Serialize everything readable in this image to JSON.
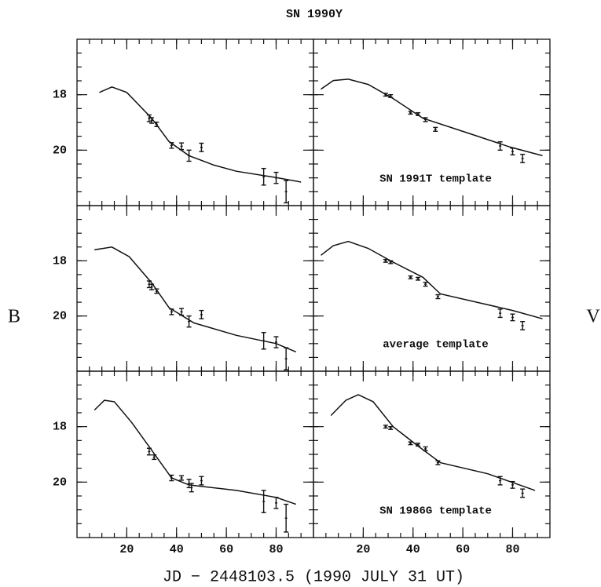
{
  "title": "SN 1990Y",
  "xlabel": "JD − 2448103.5 (1990 JULY 31 UT)",
  "ylabel_left": "B",
  "ylabel_right": "V",
  "chart_data": [
    {
      "type": "line",
      "xlim": [
        0,
        95
      ],
      "ylim": [
        22,
        16
      ],
      "xticks": [
        20,
        40,
        60,
        80
      ],
      "yticks": [
        18,
        20
      ],
      "xminor": 5,
      "yminor": 0.5,
      "xtick_labels": false,
      "ytick_labels": true,
      "curve": {
        "x": [
          9,
          14,
          20,
          30,
          37,
          45,
          55,
          64,
          80,
          90
        ],
        "y": [
          17.92,
          17.72,
          17.92,
          18.85,
          19.69,
          20.2,
          20.54,
          20.76,
          20.99,
          21.15
        ]
      },
      "points": {
        "x": [
          29,
          30,
          32,
          38,
          42,
          45,
          50,
          75,
          80,
          84
        ],
        "y": [
          18.85,
          18.93,
          19.07,
          19.83,
          19.86,
          20.2,
          19.9,
          20.96,
          21.0,
          21.5
        ],
        "err": [
          0.12,
          0.1,
          0.08,
          0.1,
          0.12,
          0.2,
          0.15,
          0.3,
          0.2,
          0.4
        ]
      }
    },
    {
      "type": "line",
      "xlim": [
        0,
        95
      ],
      "ylim": [
        22,
        16
      ],
      "xticks": [
        20,
        40,
        60,
        80
      ],
      "yticks": [
        18,
        20
      ],
      "xminor": 5,
      "yminor": 0.5,
      "xtick_labels": false,
      "ytick_labels": false,
      "annotation": "SN 1991T template",
      "curve": {
        "x": [
          3,
          8,
          14,
          22,
          32,
          44,
          63,
          79,
          92
        ],
        "y": [
          17.8,
          17.49,
          17.44,
          17.63,
          18.14,
          18.85,
          19.41,
          19.89,
          20.2
        ]
      },
      "points": {
        "x": [
          29,
          31,
          39,
          42,
          45,
          49,
          75,
          80,
          84
        ],
        "y": [
          18.0,
          18.05,
          18.65,
          18.7,
          18.9,
          19.25,
          19.85,
          20.05,
          20.3
        ],
        "err": [
          0.05,
          0.05,
          0.05,
          0.05,
          0.07,
          0.07,
          0.15,
          0.12,
          0.15
        ]
      }
    },
    {
      "type": "line",
      "xlim": [
        0,
        95
      ],
      "ylim": [
        22,
        16
      ],
      "xticks": [
        20,
        40,
        60,
        80
      ],
      "yticks": [
        18,
        20
      ],
      "xminor": 5,
      "yminor": 0.5,
      "xtick_labels": false,
      "ytick_labels": true,
      "curve": {
        "x": [
          7,
          14,
          21,
          30,
          37,
          47,
          64,
          80,
          88
        ],
        "y": [
          17.6,
          17.5,
          17.85,
          18.8,
          19.7,
          20.25,
          20.7,
          21.0,
          21.3
        ]
      },
      "points": {
        "x": [
          29,
          30,
          32,
          38,
          42,
          45,
          50,
          75,
          80,
          84
        ],
        "y": [
          18.85,
          18.95,
          19.1,
          19.85,
          19.85,
          20.2,
          19.95,
          20.9,
          20.95,
          21.55
        ],
        "err": [
          0.12,
          0.1,
          0.08,
          0.1,
          0.12,
          0.2,
          0.15,
          0.3,
          0.2,
          0.4
        ]
      }
    },
    {
      "type": "line",
      "xlim": [
        0,
        95
      ],
      "ylim": [
        22,
        16
      ],
      "xticks": [
        20,
        40,
        60,
        80
      ],
      "yticks": [
        18,
        20
      ],
      "xminor": 5,
      "yminor": 0.5,
      "xtick_labels": false,
      "ytick_labels": false,
      "annotation": "average template",
      "curve": {
        "x": [
          3,
          8,
          14,
          22,
          32,
          44,
          51,
          80,
          92
        ],
        "y": [
          17.8,
          17.45,
          17.3,
          17.55,
          18.05,
          18.6,
          19.2,
          19.8,
          20.1
        ]
      },
      "points": {
        "x": [
          29,
          31,
          39,
          42,
          45,
          50,
          75,
          80,
          84
        ],
        "y": [
          18.0,
          18.05,
          18.6,
          18.65,
          18.85,
          19.3,
          19.9,
          20.05,
          20.35
        ],
        "err": [
          0.05,
          0.05,
          0.05,
          0.05,
          0.07,
          0.07,
          0.15,
          0.12,
          0.15
        ]
      }
    },
    {
      "type": "line",
      "xlim": [
        0,
        95
      ],
      "ylim": [
        22,
        16
      ],
      "xticks": [
        20,
        40,
        60,
        80
      ],
      "yticks": [
        18,
        20
      ],
      "xminor": 5,
      "yminor": 0.5,
      "xtick_labels": true,
      "ytick_labels": true,
      "curve": {
        "x": [
          7,
          11,
          15,
          22,
          30,
          38,
          45,
          64,
          80,
          88
        ],
        "y": [
          17.4,
          17.05,
          17.1,
          17.85,
          18.85,
          19.85,
          20.1,
          20.3,
          20.55,
          20.8
        ]
      },
      "points": {
        "x": [
          29,
          31,
          38,
          42,
          45,
          46,
          50,
          75,
          80,
          84
        ],
        "y": [
          18.9,
          19.1,
          19.85,
          19.85,
          20.05,
          20.2,
          19.95,
          20.7,
          20.75,
          21.3
        ],
        "err": [
          0.12,
          0.08,
          0.1,
          0.08,
          0.15,
          0.15,
          0.15,
          0.4,
          0.2,
          0.5
        ]
      }
    },
    {
      "type": "line",
      "xlim": [
        0,
        95
      ],
      "ylim": [
        22,
        16
      ],
      "xticks": [
        20,
        40,
        60,
        80
      ],
      "yticks": [
        18,
        20
      ],
      "xminor": 5,
      "yminor": 0.5,
      "xtick_labels": true,
      "ytick_labels": false,
      "annotation": "SN 1986G template",
      "curve": {
        "x": [
          7,
          13,
          18,
          24,
          32,
          42,
          51,
          70,
          89
        ],
        "y": [
          17.6,
          17.05,
          16.85,
          17.1,
          18.0,
          18.7,
          19.3,
          19.7,
          20.3
        ]
      },
      "points": {
        "x": [
          29,
          31,
          39,
          42,
          45,
          50,
          75,
          80,
          84
        ],
        "y": [
          18.0,
          18.05,
          18.6,
          18.65,
          18.8,
          19.3,
          19.95,
          20.1,
          20.4
        ],
        "err": [
          0.05,
          0.05,
          0.05,
          0.05,
          0.07,
          0.07,
          0.15,
          0.12,
          0.15
        ]
      }
    }
  ]
}
